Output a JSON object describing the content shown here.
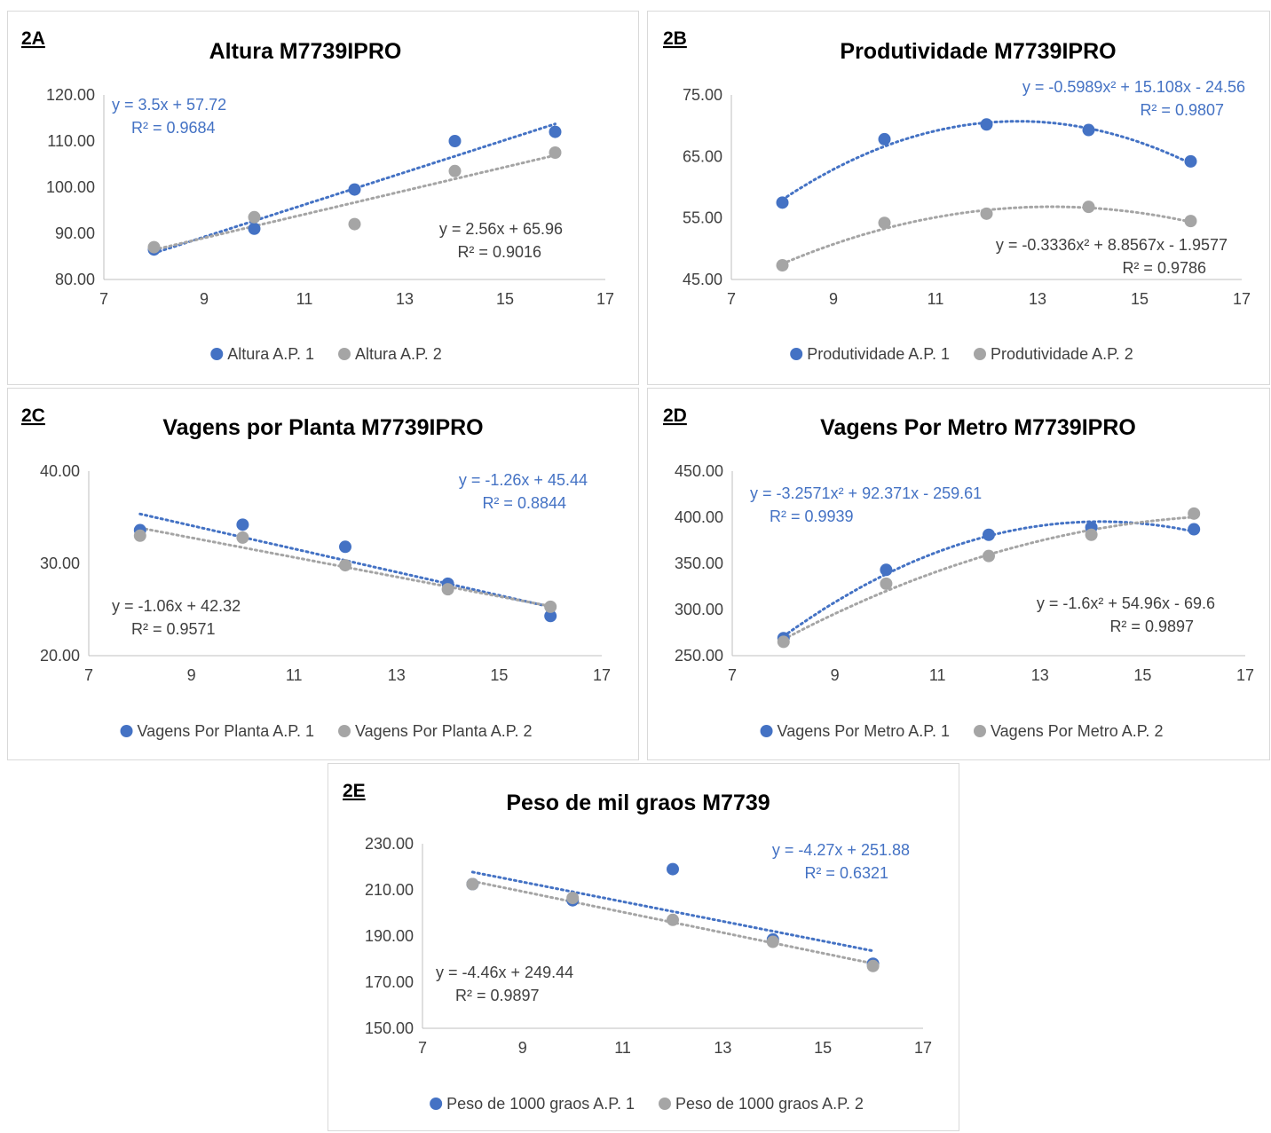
{
  "colors": {
    "series1": "#4472c4",
    "series2": "#a5a5a5",
    "axis": "#bfbfbf",
    "text": "#404040",
    "border": "#d9d9d9"
  },
  "chart_data": [
    {
      "id": "2A",
      "type": "scatter",
      "title": "Altura M7739IPRO",
      "xlim": [
        7,
        17
      ],
      "xticks": [
        7,
        9,
        11,
        13,
        15,
        17
      ],
      "ylim": [
        80,
        120
      ],
      "yticks": [
        80,
        90,
        100,
        110,
        120
      ],
      "ydecimals": 2,
      "grid": false,
      "legend": "bottom",
      "series": [
        {
          "name": "Altura A.P. 1",
          "x": [
            8,
            10,
            12,
            14,
            16
          ],
          "y": [
            86.5,
            91.0,
            99.5,
            110.0,
            112.0
          ],
          "trend": {
            "type": "linear",
            "coef": [
              57.72,
              3.5
            ]
          },
          "equation": "y = 3.5x + 57.72",
          "r2": "R² = 0.9684"
        },
        {
          "name": "Altura A.P. 2",
          "x": [
            8,
            10,
            12,
            14,
            16
          ],
          "y": [
            87.0,
            93.5,
            92.0,
            103.5,
            107.5
          ],
          "trend": {
            "type": "linear",
            "coef": [
              65.96,
              2.56
            ]
          },
          "equation": "y = 2.56x + 65.96",
          "r2": "R² = 0.9016"
        }
      ]
    },
    {
      "id": "2B",
      "type": "scatter",
      "title": "Produtividade M7739IPRO",
      "xlim": [
        7,
        17
      ],
      "xticks": [
        7,
        9,
        11,
        13,
        15,
        17
      ],
      "ylim": [
        45,
        75
      ],
      "yticks": [
        45,
        55,
        65,
        75
      ],
      "ydecimals": 2,
      "grid": false,
      "legend": "bottom",
      "series": [
        {
          "name": "Produtividade A.P. 1",
          "x": [
            8,
            10,
            12,
            14,
            16
          ],
          "y": [
            57.5,
            67.8,
            70.2,
            69.3,
            64.2
          ],
          "trend": {
            "type": "poly",
            "coef": [
              -24.56,
              15.108,
              -0.5989
            ]
          },
          "equation": "y = -0.5989x² + 15.108x - 24.56",
          "r2": "R² = 0.9807"
        },
        {
          "name": "Produtividade A.P. 2",
          "x": [
            8,
            10,
            12,
            14,
            16
          ],
          "y": [
            47.3,
            54.2,
            55.7,
            56.8,
            54.5
          ],
          "trend": {
            "type": "poly",
            "coef": [
              -1.9577,
              8.8567,
              -0.3336
            ]
          },
          "equation": "y = -0.3336x² + 8.8567x - 1.9577",
          "r2": "R² = 0.9786"
        }
      ]
    },
    {
      "id": "2C",
      "type": "scatter",
      "title": "Vagens por Planta M7739IPRO",
      "xlim": [
        7,
        17
      ],
      "xticks": [
        7,
        9,
        11,
        13,
        15,
        17
      ],
      "ylim": [
        20,
        40
      ],
      "yticks": [
        20,
        30,
        40
      ],
      "ydecimals": 2,
      "grid": false,
      "legend": "bottom",
      "series": [
        {
          "name": "Vagens Por Planta A.P. 1",
          "x": [
            8,
            10,
            12,
            14,
            16
          ],
          "y": [
            33.6,
            34.2,
            31.8,
            27.8,
            24.3
          ],
          "trend": {
            "type": "linear",
            "coef": [
              45.44,
              -1.26
            ]
          },
          "equation": "y = -1.26x + 45.44",
          "r2": "R² = 0.8844"
        },
        {
          "name": "Vagens Por Planta A.P. 2",
          "x": [
            8,
            10,
            12,
            14,
            16
          ],
          "y": [
            33.0,
            32.8,
            29.8,
            27.2,
            25.3
          ],
          "trend": {
            "type": "linear",
            "coef": [
              42.32,
              -1.06
            ]
          },
          "equation": "y = -1.06x + 42.32",
          "r2": "R² = 0.9571"
        }
      ]
    },
    {
      "id": "2D",
      "type": "scatter",
      "title": "Vagens Por Metro M7739IPRO",
      "xlim": [
        7,
        17
      ],
      "xticks": [
        7,
        9,
        11,
        13,
        15,
        17
      ],
      "ylim": [
        250,
        450
      ],
      "yticks": [
        250,
        300,
        350,
        400,
        450
      ],
      "ydecimals": 2,
      "grid": false,
      "legend": "bottom",
      "series": [
        {
          "name": "Vagens Por Metro A.P. 1",
          "x": [
            8,
            10,
            12,
            14,
            16
          ],
          "y": [
            269,
            343,
            381,
            389,
            387
          ],
          "trend": {
            "type": "poly",
            "coef": [
              -259.61,
              92.371,
              -3.2571
            ]
          },
          "equation": "y = -3.2571x² + 92.371x - 259.61",
          "r2": "R² = 0.9939"
        },
        {
          "name": "Vagens Por Metro A.P. 2",
          "x": [
            8,
            10,
            12,
            14,
            16
          ],
          "y": [
            265,
            328,
            358,
            381,
            404
          ],
          "trend": {
            "type": "poly",
            "coef": [
              -69.6,
              54.96,
              -1.6
            ]
          },
          "equation": "y = -1.6x² + 54.96x - 69.6",
          "r2": "R² = 0.9897"
        }
      ]
    },
    {
      "id": "2E",
      "type": "scatter",
      "title": "Peso de mil graos M7739",
      "xlim": [
        7,
        17
      ],
      "xticks": [
        7,
        9,
        11,
        13,
        15,
        17
      ],
      "ylim": [
        150,
        230
      ],
      "yticks": [
        150,
        170,
        190,
        210,
        230
      ],
      "ydecimals": 2,
      "grid": false,
      "legend": "bottom",
      "series": [
        {
          "name": "Peso de 1000 graos A.P. 1",
          "x": [
            8,
            10,
            12,
            14,
            16
          ],
          "y": [
            212.5,
            205.5,
            219.0,
            188.5,
            178.0
          ],
          "trend": {
            "type": "linear",
            "coef": [
              251.88,
              -4.27
            ]
          },
          "equation": "y = -4.27x + 251.88",
          "r2": "R² = 0.6321"
        },
        {
          "name": "Peso de 1000 graos A.P. 2",
          "x": [
            8,
            10,
            12,
            14,
            16
          ],
          "y": [
            212.5,
            206.5,
            197.0,
            187.5,
            177.0
          ],
          "trend": {
            "type": "linear",
            "coef": [
              249.44,
              -4.46
            ]
          },
          "equation": "y = -4.46x + 249.44",
          "r2": "R² = 0.9897"
        }
      ]
    }
  ]
}
